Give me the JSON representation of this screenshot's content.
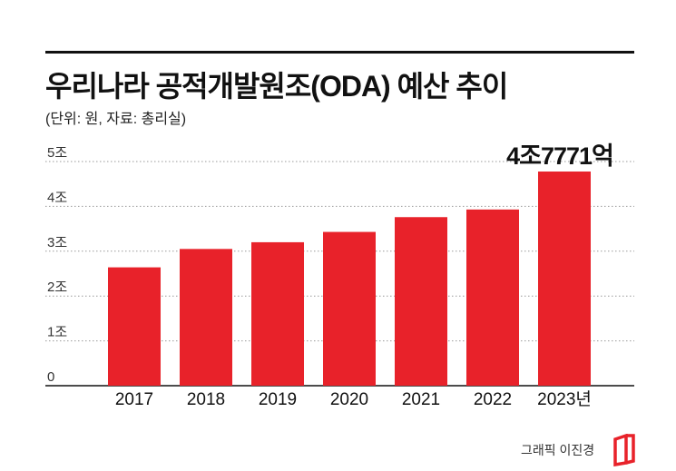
{
  "header": {
    "title": "우리나라 공적개발원조(ODA) 예산 추이",
    "subtitle": "(단위: 원, 자료: 총리실)"
  },
  "chart_data": {
    "type": "bar",
    "categories": [
      "2017",
      "2018",
      "2019",
      "2020",
      "2021",
      "2022",
      "2023년"
    ],
    "values": [
      2.64,
      3.05,
      3.2,
      3.43,
      3.76,
      3.93,
      4.7771
    ],
    "yticks": [
      {
        "value": 0,
        "label": "0"
      },
      {
        "value": 1,
        "label": "1조"
      },
      {
        "value": 2,
        "label": "2조"
      },
      {
        "value": 3,
        "label": "3조"
      },
      {
        "value": 4,
        "label": "4조"
      },
      {
        "value": 5,
        "label": "5조"
      }
    ],
    "ylim": [
      0,
      5
    ],
    "grid": true,
    "annotation": {
      "index": 6,
      "label": "4조7771억"
    },
    "bar_color": "#e8222a"
  },
  "footer": {
    "credit": "그래픽 이진경"
  },
  "colors": {
    "accent": "#e8222a",
    "text": "#111111",
    "grid": "#9a9a9a"
  }
}
